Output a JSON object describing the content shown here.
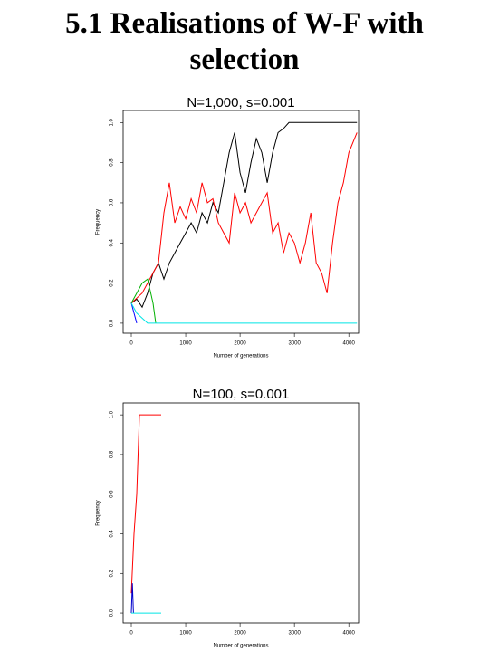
{
  "title": "5.1 Realisations of W-F with selection",
  "chart_data": [
    {
      "type": "line",
      "title": "N=1,000, s=0.001",
      "xlabel": "Number of generations",
      "ylabel": "Frequency",
      "xlim": [
        -150,
        4180
      ],
      "ylim": [
        -0.05,
        1.06
      ],
      "xticks": [
        0,
        1000,
        2000,
        3000,
        4000
      ],
      "yticks": [
        {
          "value": 0,
          "label": "0.0"
        },
        0.2,
        0.4,
        0.6,
        0.8,
        {
          "value": 1,
          "label": "1.0"
        }
      ],
      "series": [
        {
          "color": "#000000",
          "x": [
            0,
            100,
            200,
            300,
            400,
            500,
            600,
            700,
            800,
            900,
            1000,
            1100,
            1200,
            1300,
            1400,
            1500,
            1600,
            1700,
            1800,
            1900,
            2000,
            2100,
            2200,
            2300,
            2400,
            2500,
            2600,
            2700,
            2800,
            2900,
            4150
          ],
          "values": [
            0.1,
            0.12,
            0.08,
            0.15,
            0.25,
            0.3,
            0.22,
            0.3,
            0.35,
            0.4,
            0.45,
            0.5,
            0.45,
            0.55,
            0.5,
            0.6,
            0.55,
            0.7,
            0.85,
            0.95,
            0.75,
            0.65,
            0.8,
            0.92,
            0.85,
            0.7,
            0.85,
            0.95,
            0.97,
            1.0,
            1.0
          ]
        },
        {
          "color": "#ff0000",
          "x": [
            0,
            200,
            300,
            400,
            500,
            600,
            700,
            800,
            900,
            1000,
            1100,
            1200,
            1300,
            1400,
            1500,
            1600,
            1700,
            1800,
            1900,
            2000,
            2100,
            2200,
            2300,
            2400,
            2500,
            2600,
            2700,
            2800,
            2900,
            3000,
            3100,
            3200,
            3300,
            3400,
            3500,
            3600,
            3700,
            3800,
            3900,
            4000,
            4150
          ],
          "values": [
            0.1,
            0.15,
            0.2,
            0.25,
            0.3,
            0.55,
            0.7,
            0.5,
            0.58,
            0.52,
            0.62,
            0.55,
            0.7,
            0.6,
            0.62,
            0.5,
            0.45,
            0.4,
            0.65,
            0.55,
            0.6,
            0.5,
            0.55,
            0.6,
            0.65,
            0.45,
            0.5,
            0.35,
            0.45,
            0.4,
            0.3,
            0.4,
            0.55,
            0.3,
            0.25,
            0.15,
            0.4,
            0.6,
            0.7,
            0.85,
            0.95
          ]
        },
        {
          "color": "#00b000",
          "x": [
            0,
            100,
            200,
            300,
            400,
            450
          ],
          "values": [
            0.1,
            0.15,
            0.2,
            0.22,
            0.1,
            0.0
          ]
        },
        {
          "color": "#0000ff",
          "x": [
            0,
            50,
            100
          ],
          "values": [
            0.1,
            0.05,
            0.0
          ]
        },
        {
          "color": "#00e5e5",
          "x": [
            0,
            100,
            300,
            4150
          ],
          "values": [
            0.1,
            0.05,
            0.0,
            0.0
          ]
        }
      ]
    },
    {
      "type": "line",
      "title": "N=100, s=0.001",
      "xlabel": "Number of generations",
      "ylabel": "Frequency",
      "xlim": [
        -150,
        4180
      ],
      "ylim": [
        -0.05,
        1.06
      ],
      "xticks": [
        0,
        1000,
        2000,
        3000,
        4000
      ],
      "yticks": [
        {
          "value": 0,
          "label": "0.0"
        },
        0.2,
        0.4,
        0.6,
        0.8,
        {
          "value": 1,
          "label": "1.0"
        }
      ],
      "series": [
        {
          "color": "#ff0000",
          "x": [
            0,
            50,
            100,
            150,
            550
          ],
          "values": [
            0.1,
            0.4,
            0.6,
            1.0,
            1.0
          ]
        },
        {
          "color": "#0000cc",
          "x": [
            0,
            20,
            40
          ],
          "values": [
            0.0,
            0.15,
            0.0
          ]
        },
        {
          "color": "#00e5e5",
          "x": [
            0,
            550
          ],
          "values": [
            0.0,
            0.0
          ]
        }
      ]
    }
  ]
}
